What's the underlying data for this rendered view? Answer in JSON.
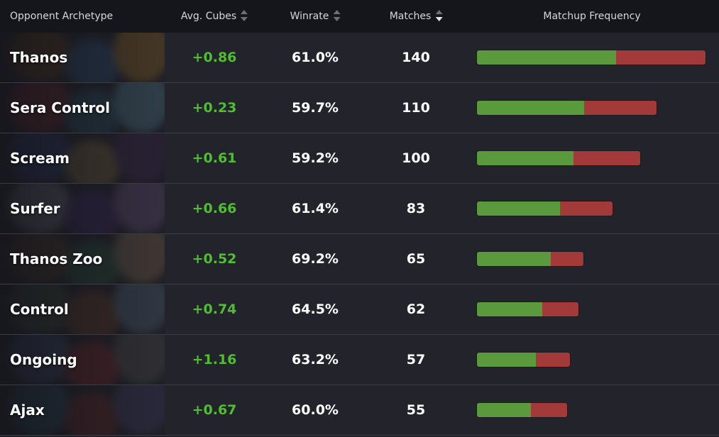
{
  "header": {
    "archetype": "Opponent Archetype",
    "avg_cubes": "Avg. Cubes",
    "winrate": "Winrate",
    "matches": "Matches",
    "frequency": "Matchup Frequency"
  },
  "colors": {
    "positive": "#4fbf2f",
    "win_bar": "#5a9a3c",
    "loss_bar": "#a33a3a",
    "header_bg": "#15161b",
    "row_bg": "#23242b"
  },
  "sort": {
    "column": "matches",
    "direction": "descending"
  },
  "rows": [
    {
      "name": "Thanos",
      "avg_cubes": "+0.86",
      "winrate": "61.0%",
      "matches": "140",
      "winrate_value": 61.0,
      "matches_value": 140
    },
    {
      "name": "Sera Control",
      "avg_cubes": "+0.23",
      "winrate": "59.7%",
      "matches": "110",
      "winrate_value": 59.7,
      "matches_value": 110
    },
    {
      "name": "Scream",
      "avg_cubes": "+0.61",
      "winrate": "59.2%",
      "matches": "100",
      "winrate_value": 59.2,
      "matches_value": 100
    },
    {
      "name": "Surfer",
      "avg_cubes": "+0.66",
      "winrate": "61.4%",
      "matches": "83",
      "winrate_value": 61.4,
      "matches_value": 83
    },
    {
      "name": "Thanos Zoo",
      "avg_cubes": "+0.52",
      "winrate": "69.2%",
      "matches": "65",
      "winrate_value": 69.2,
      "matches_value": 65
    },
    {
      "name": "Control",
      "avg_cubes": "+0.74",
      "winrate": "64.5%",
      "matches": "62",
      "winrate_value": 64.5,
      "matches_value": 62
    },
    {
      "name": "Ongoing",
      "avg_cubes": "+1.16",
      "winrate": "63.2%",
      "matches": "57",
      "winrate_value": 63.2,
      "matches_value": 57
    },
    {
      "name": "Ajax",
      "avg_cubes": "+0.67",
      "winrate": "60.0%",
      "matches": "55",
      "winrate_value": 60.0,
      "matches_value": 55
    }
  ]
}
